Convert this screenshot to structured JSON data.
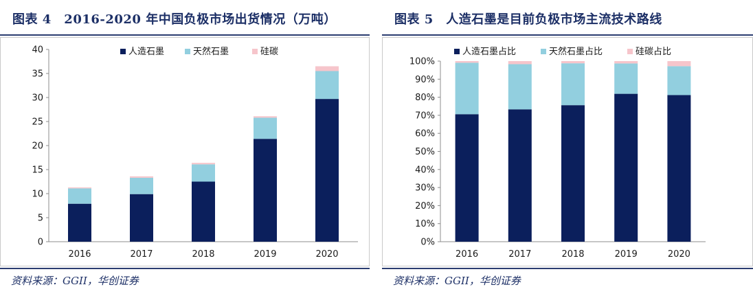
{
  "left": {
    "figure_title": "图表 4　2016-2020 年中国负极市场出货情况（万吨）",
    "source": "资料来源：GGII，华创证券"
  },
  "right": {
    "figure_title": "图表 5　人造石墨是目前负极市场主流技术路线",
    "source": "资料来源：GGII，华创证券"
  },
  "colors": {
    "artificial": "#0b1f5c",
    "natural": "#92cfdf",
    "silicon": "#f6c5cb",
    "title": "#1c2f66"
  },
  "chart_data": [
    {
      "type": "bar",
      "stacked": true,
      "categories": [
        "2016",
        "2017",
        "2018",
        "2019",
        "2020"
      ],
      "series": [
        {
          "name": "人造石墨",
          "values": [
            7.9,
            9.9,
            12.5,
            21.4,
            29.7
          ]
        },
        {
          "name": "天然石墨",
          "values": [
            3.2,
            3.4,
            3.6,
            4.4,
            5.8
          ]
        },
        {
          "name": "硅碳",
          "values": [
            0.2,
            0.3,
            0.3,
            0.3,
            1.0
          ]
        }
      ],
      "ylim": [
        0,
        40
      ],
      "yticks": [
        0,
        5,
        10,
        15,
        20,
        25,
        30,
        35,
        40
      ],
      "ytick_labels": [
        "0",
        "5",
        "10",
        "15",
        "20",
        "25",
        "30",
        "35",
        "40"
      ],
      "legend_position": "top",
      "grid": false
    },
    {
      "type": "bar",
      "stacked": true,
      "categories": [
        "2016",
        "2017",
        "2018",
        "2019",
        "2020"
      ],
      "series": [
        {
          "name": "人造石墨占比",
          "values": [
            70.6,
            73.3,
            75.6,
            81.9,
            81.2
          ]
        },
        {
          "name": "天然石墨占比",
          "values": [
            28.5,
            25.0,
            23.2,
            16.8,
            16.0
          ]
        },
        {
          "name": "硅碳占比",
          "values": [
            0.9,
            1.7,
            1.2,
            1.3,
            2.8
          ]
        }
      ],
      "ylim": [
        0,
        100
      ],
      "yticks": [
        0,
        10,
        20,
        30,
        40,
        50,
        60,
        70,
        80,
        90,
        100
      ],
      "ytick_labels": [
        "0%",
        "10%",
        "20%",
        "30%",
        "40%",
        "50%",
        "60%",
        "70%",
        "80%",
        "90%",
        "100%"
      ],
      "legend_position": "top",
      "grid": false
    }
  ]
}
